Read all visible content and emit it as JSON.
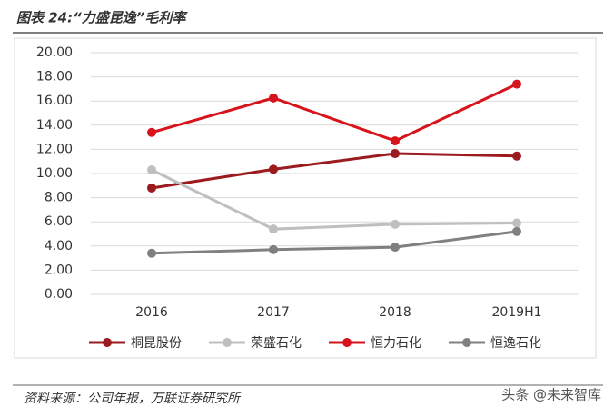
{
  "header": {
    "title": "图表 24:“力盛昆逸”毛利率"
  },
  "chart_data": {
    "type": "line",
    "categories": [
      "2016",
      "2017",
      "2018",
      "2019H1"
    ],
    "series": [
      {
        "name": "桐昆股份",
        "color": "#9b1b1e",
        "values": [
          8.8,
          10.35,
          11.65,
          11.45
        ]
      },
      {
        "name": "荣盛石化",
        "color": "#bfbfbf",
        "values": [
          10.3,
          5.4,
          5.8,
          5.9
        ]
      },
      {
        "name": "恒力石化",
        "color": "#d7141c",
        "values": [
          13.4,
          16.25,
          12.7,
          17.4
        ]
      },
      {
        "name": "恒逸石化",
        "color": "#808080",
        "values": [
          3.4,
          3.7,
          3.9,
          5.2
        ]
      }
    ],
    "ylim": [
      0,
      20
    ],
    "yticks": [
      {
        "value": 0,
        "label": "0.00"
      },
      {
        "value": 2,
        "label": "2.00"
      },
      {
        "value": 4,
        "label": "4.00"
      },
      {
        "value": 6,
        "label": "6.00"
      },
      {
        "value": 8,
        "label": "8.00"
      },
      {
        "value": 10,
        "label": "10.00"
      },
      {
        "value": 12,
        "label": "12.00"
      },
      {
        "value": 14,
        "label": "14.00"
      },
      {
        "value": 16,
        "label": "16.00"
      },
      {
        "value": 18,
        "label": "18.00"
      },
      {
        "value": 20,
        "label": "20.00"
      }
    ],
    "grid": true
  },
  "footer": {
    "source": "资料来源：公司年报，万联证券研究所",
    "watermark": "头条 @未来智库"
  }
}
